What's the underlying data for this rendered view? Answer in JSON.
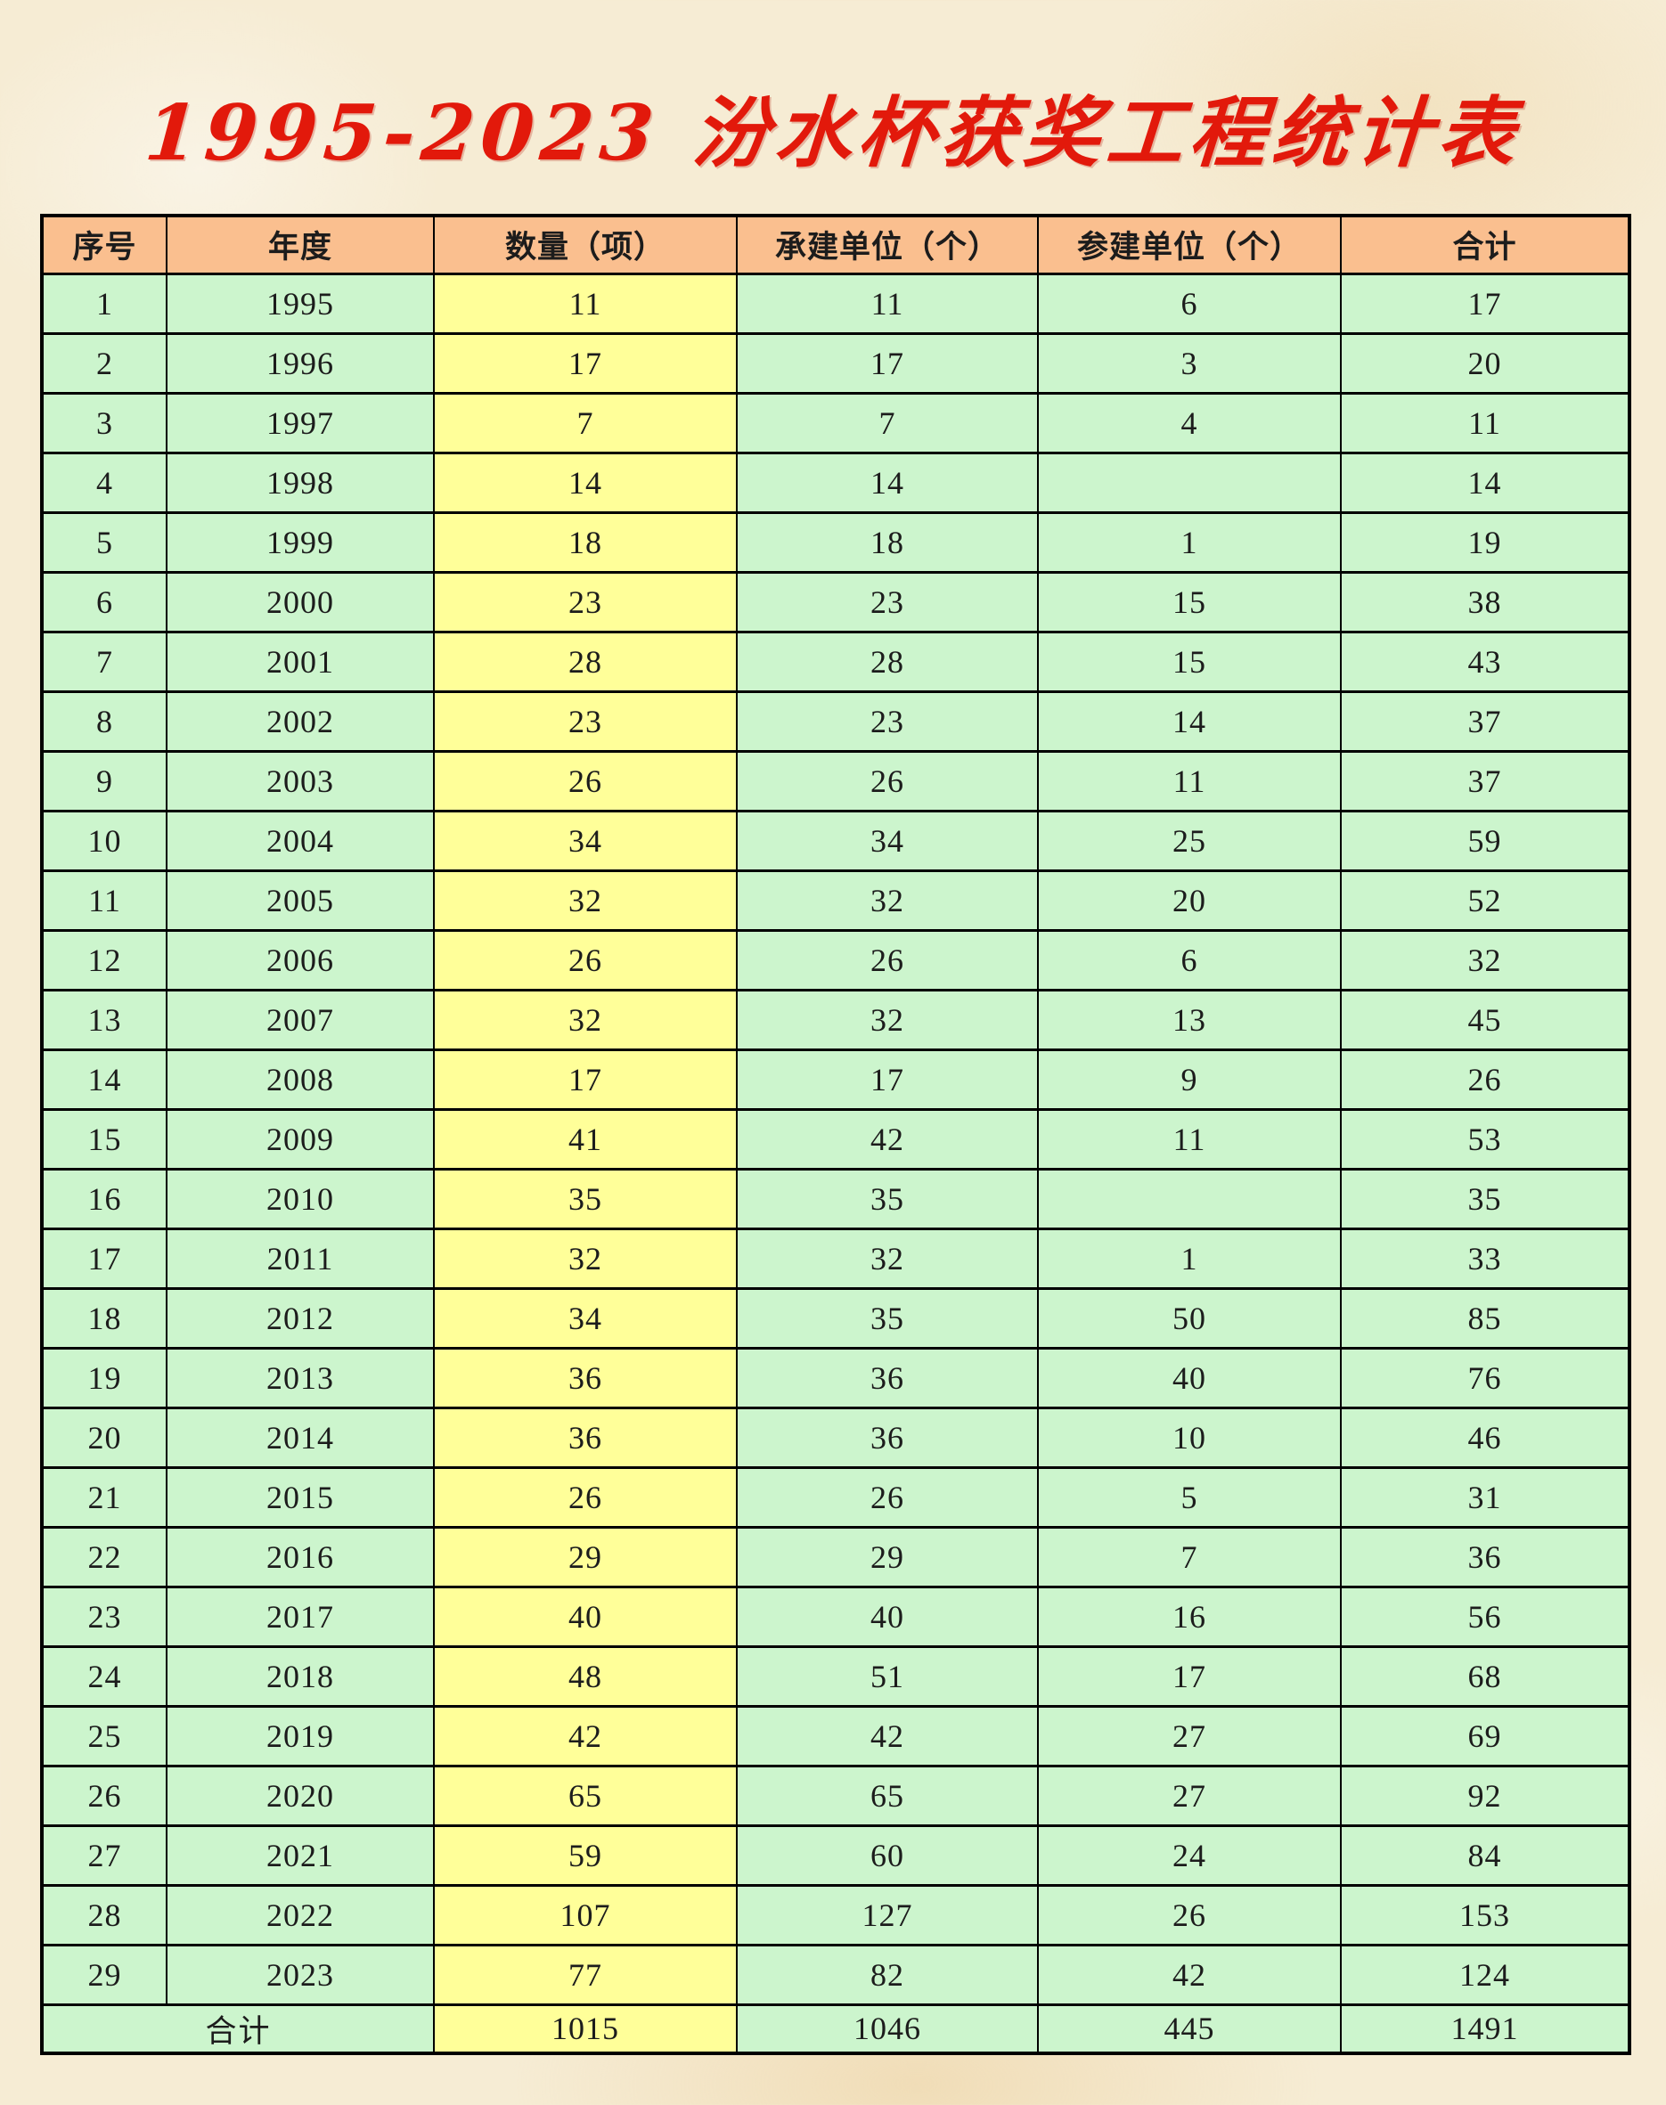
{
  "page": {
    "title": "1995-2023 汾水杯获奖工程统计表"
  },
  "table": {
    "headers": [
      "序号",
      "年度",
      "数量（项）",
      "承建单位（个）",
      "参建单位（个）",
      "合计"
    ],
    "column_keys": [
      "index",
      "year",
      "quantity",
      "contractor-units",
      "participant-units",
      "total"
    ],
    "rows": [
      [
        "1",
        "1995",
        "11",
        "11",
        "6",
        "17"
      ],
      [
        "2",
        "1996",
        "17",
        "17",
        "3",
        "20"
      ],
      [
        "3",
        "1997",
        "7",
        "7",
        "4",
        "11"
      ],
      [
        "4",
        "1998",
        "14",
        "14",
        "",
        "14"
      ],
      [
        "5",
        "1999",
        "18",
        "18",
        "1",
        "19"
      ],
      [
        "6",
        "2000",
        "23",
        "23",
        "15",
        "38"
      ],
      [
        "7",
        "2001",
        "28",
        "28",
        "15",
        "43"
      ],
      [
        "8",
        "2002",
        "23",
        "23",
        "14",
        "37"
      ],
      [
        "9",
        "2003",
        "26",
        "26",
        "11",
        "37"
      ],
      [
        "10",
        "2004",
        "34",
        "34",
        "25",
        "59"
      ],
      [
        "11",
        "2005",
        "32",
        "32",
        "20",
        "52"
      ],
      [
        "12",
        "2006",
        "26",
        "26",
        "6",
        "32"
      ],
      [
        "13",
        "2007",
        "32",
        "32",
        "13",
        "45"
      ],
      [
        "14",
        "2008",
        "17",
        "17",
        "9",
        "26"
      ],
      [
        "15",
        "2009",
        "41",
        "42",
        "11",
        "53"
      ],
      [
        "16",
        "2010",
        "35",
        "35",
        "",
        "35"
      ],
      [
        "17",
        "2011",
        "32",
        "32",
        "1",
        "33"
      ],
      [
        "18",
        "2012",
        "34",
        "35",
        "50",
        "85"
      ],
      [
        "19",
        "2013",
        "36",
        "36",
        "40",
        "76"
      ],
      [
        "20",
        "2014",
        "36",
        "36",
        "10",
        "46"
      ],
      [
        "21",
        "2015",
        "26",
        "26",
        "5",
        "31"
      ],
      [
        "22",
        "2016",
        "29",
        "29",
        "7",
        "36"
      ],
      [
        "23",
        "2017",
        "40",
        "40",
        "16",
        "56"
      ],
      [
        "24",
        "2018",
        "48",
        "51",
        "17",
        "68"
      ],
      [
        "25",
        "2019",
        "42",
        "42",
        "27",
        "69"
      ],
      [
        "26",
        "2020",
        "65",
        "65",
        "27",
        "92"
      ],
      [
        "27",
        "2021",
        "59",
        "60",
        "24",
        "84"
      ],
      [
        "28",
        "2022",
        "107",
        "127",
        "26",
        "153"
      ],
      [
        "29",
        "2023",
        "77",
        "82",
        "42",
        "124"
      ]
    ],
    "total_row": {
      "label": "合计",
      "values": [
        "1015",
        "1046",
        "445",
        "1491"
      ]
    }
  },
  "colors": {
    "title": "#e2190b",
    "header_bg": "#fabf8f",
    "cell_green": "#ccf5cd",
    "cell_yellow": "#ffff99",
    "border": "#000000",
    "page_bg": "#f6ecd4"
  }
}
